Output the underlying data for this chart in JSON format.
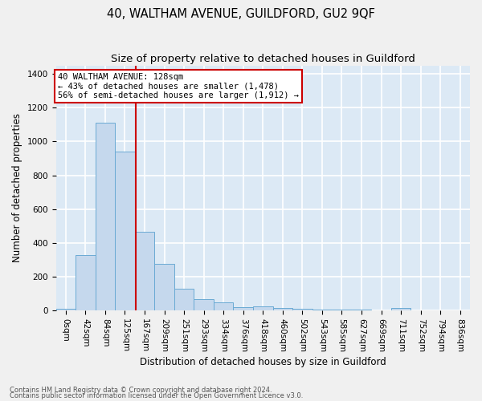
{
  "title": "40, WALTHAM AVENUE, GUILDFORD, GU2 9QF",
  "subtitle": "Size of property relative to detached houses in Guildford",
  "xlabel": "Distribution of detached houses by size in Guildford",
  "ylabel": "Number of detached properties",
  "footnote1": "Contains HM Land Registry data © Crown copyright and database right 2024.",
  "footnote2": "Contains public sector information licensed under the Open Government Licence v3.0.",
  "categories": [
    "0sqm",
    "42sqm",
    "84sqm",
    "125sqm",
    "167sqm",
    "209sqm",
    "251sqm",
    "293sqm",
    "334sqm",
    "376sqm",
    "418sqm",
    "460sqm",
    "502sqm",
    "543sqm",
    "585sqm",
    "627sqm",
    "669sqm",
    "711sqm",
    "752sqm",
    "794sqm",
    "836sqm"
  ],
  "values": [
    10,
    330,
    1110,
    940,
    465,
    275,
    130,
    65,
    47,
    20,
    26,
    17,
    10,
    4,
    4,
    4,
    0,
    17,
    0,
    0,
    0
  ],
  "bar_color": "#c5d8ed",
  "bar_edge_color": "#6aaad4",
  "property_line_label": "40 WALTHAM AVENUE: 128sqm",
  "annotation_line1": "← 43% of detached houses are smaller (1,478)",
  "annotation_line2": "56% of semi-detached houses are larger (1,912) →",
  "annotation_box_color": "#ffffff",
  "annotation_box_edge_color": "#cc0000",
  "property_line_color": "#cc0000",
  "ylim": [
    0,
    1450
  ],
  "background_color": "#dce9f5",
  "grid_color": "#ffffff",
  "fig_background": "#f0f0f0",
  "title_fontsize": 10.5,
  "subtitle_fontsize": 9.5,
  "axis_label_fontsize": 8.5,
  "tick_fontsize": 7.5,
  "annotation_fontsize": 7.5,
  "footnote_fontsize": 6.0
}
